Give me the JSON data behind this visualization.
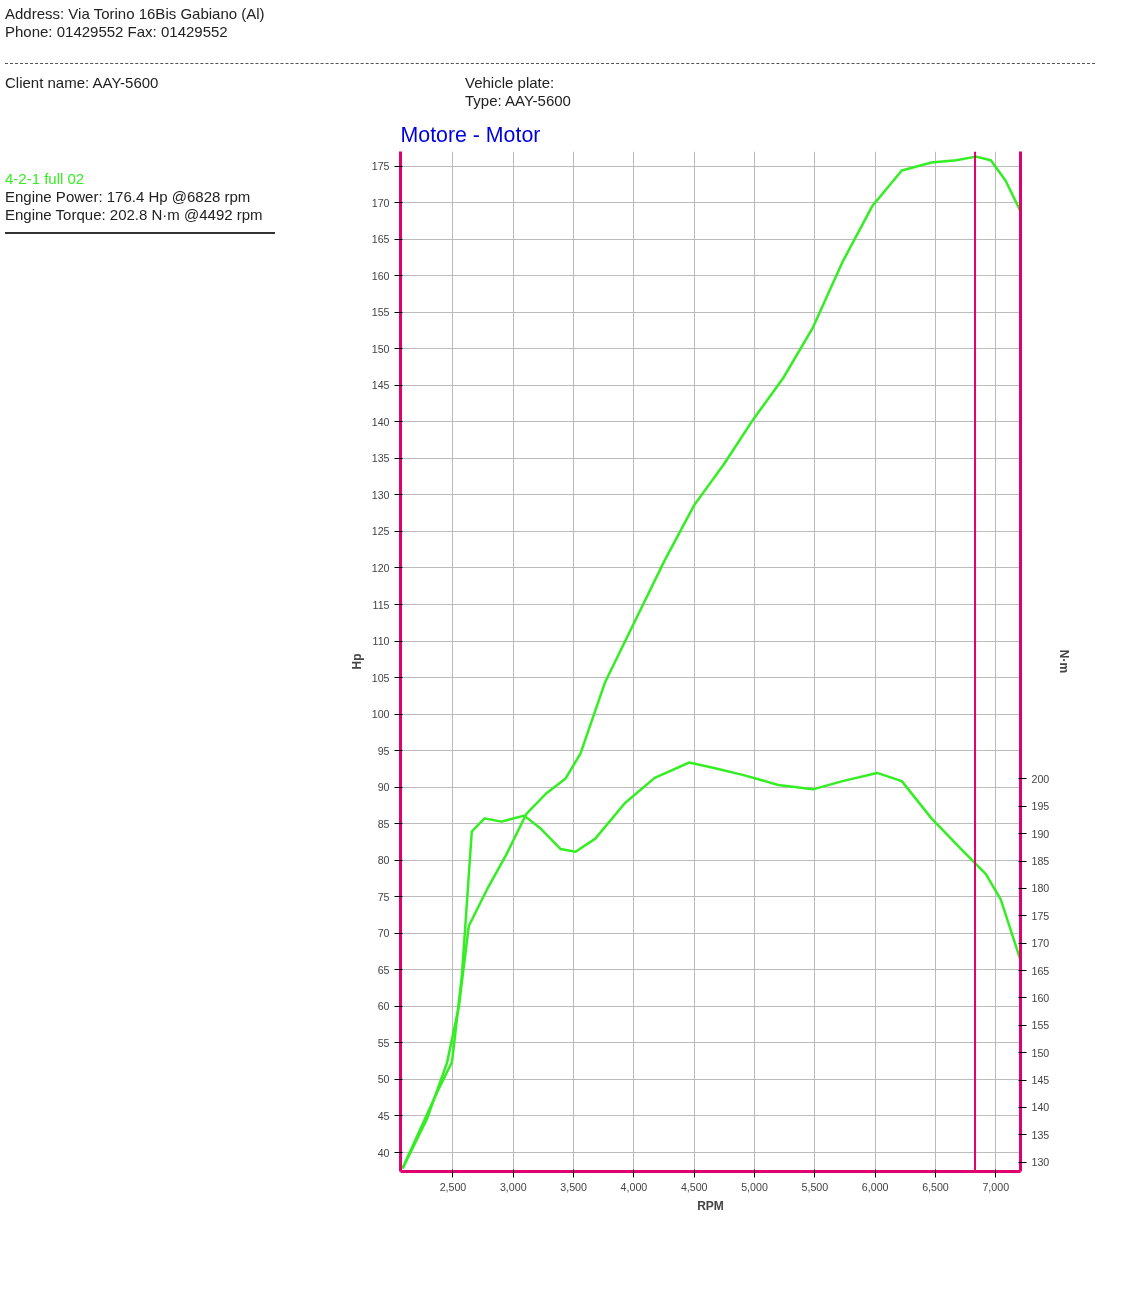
{
  "chart_data": {
    "type": "line",
    "title": "Motore - Motor",
    "xlabel": "RPM",
    "ylabel": "Hp",
    "y2label": "N·m",
    "annotations": [
      "Address: Via Torino 16Bis Gabiano (Al)",
      "Phone: 01429552 Fax: 01429552",
      "Client name: AAY-5600",
      "Vehicle plate:",
      "Type: AAY-5600",
      "4-2-1 full 02",
      "Engine Power: 176.4 Hp @6828 rpm",
      "Engine Torque: 202.8 N·m @4492 rpm"
    ],
    "xlim": [
      2065,
      7205
    ],
    "ylim": [
      37.4,
      177
    ],
    "y2lim": [
      128.3,
      314.6
    ],
    "xticks": [
      {
        "value": 2500,
        "label": "2,500"
      },
      {
        "value": 3000,
        "label": "3,000"
      },
      {
        "value": 3500,
        "label": "3,500"
      },
      {
        "value": 4000,
        "label": "4,000"
      },
      {
        "value": 4500,
        "label": "4,500"
      },
      {
        "value": 5000,
        "label": "5,000"
      },
      {
        "value": 5500,
        "label": "5,500"
      },
      {
        "value": 6000,
        "label": "6,000"
      },
      {
        "value": 6500,
        "label": "6,500"
      },
      {
        "value": 7000,
        "label": "7,000"
      }
    ],
    "yticks": [
      40,
      45,
      50,
      55,
      60,
      65,
      70,
      75,
      80,
      85,
      90,
      95,
      100,
      105,
      110,
      115,
      120,
      125,
      130,
      135,
      140,
      145,
      150,
      155,
      160,
      165,
      170,
      175
    ],
    "y2ticks": [
      130,
      135,
      140,
      145,
      150,
      155,
      160,
      165,
      170,
      175,
      180,
      185,
      190,
      195,
      200
    ],
    "grid": true,
    "ref_lines": [
      {
        "axis": "x",
        "value": 6828,
        "color": "#e0006e"
      }
    ],
    "series": [
      {
        "color": "#33ee22",
        "x": [
          2082,
          2287,
          2451,
          2549,
          2631,
          2779,
          2943,
          3107,
          3270,
          3434,
          3557,
          3762,
          4008,
          4254,
          4500,
          4746,
          4992,
          5238,
          5484,
          5730,
          5975,
          6221,
          6467,
          6672,
          6836,
          6959,
          7082,
          7205
        ],
        "values": [
          37.8,
          44.7,
          52.3,
          60,
          71,
          75.9,
          80.8,
          86.3,
          89.1,
          91.2,
          94.6,
          104.4,
          112.7,
          121,
          128.6,
          134.2,
          140.4,
          146,
          152.9,
          161.9,
          169.5,
          174.4,
          175.5,
          175.8,
          176.3,
          175.8,
          173,
          168.8
        ]
      },
      {
        "color": "#33ee22",
        "axis": "y2",
        "x": [
          2082,
          2369,
          2492,
          2574,
          2656,
          2762,
          2902,
          3090,
          3229,
          3393,
          3516,
          3680,
          3926,
          4172,
          4459,
          4664,
          4910,
          5197,
          5484,
          5730,
          6016,
          6221,
          6467,
          6713,
          6918,
          7041,
          7205
        ],
        "values": [
          128.9,
          142.8,
          148.3,
          164.1,
          190.4,
          192.8,
          192.2,
          193.3,
          190.9,
          187.2,
          186.7,
          189.1,
          195.6,
          200.2,
          203,
          202,
          200.7,
          198.9,
          198.1,
          199.6,
          201.1,
          199.6,
          192.8,
          187.2,
          182.6,
          178,
          166.9
        ]
      }
    ]
  }
}
